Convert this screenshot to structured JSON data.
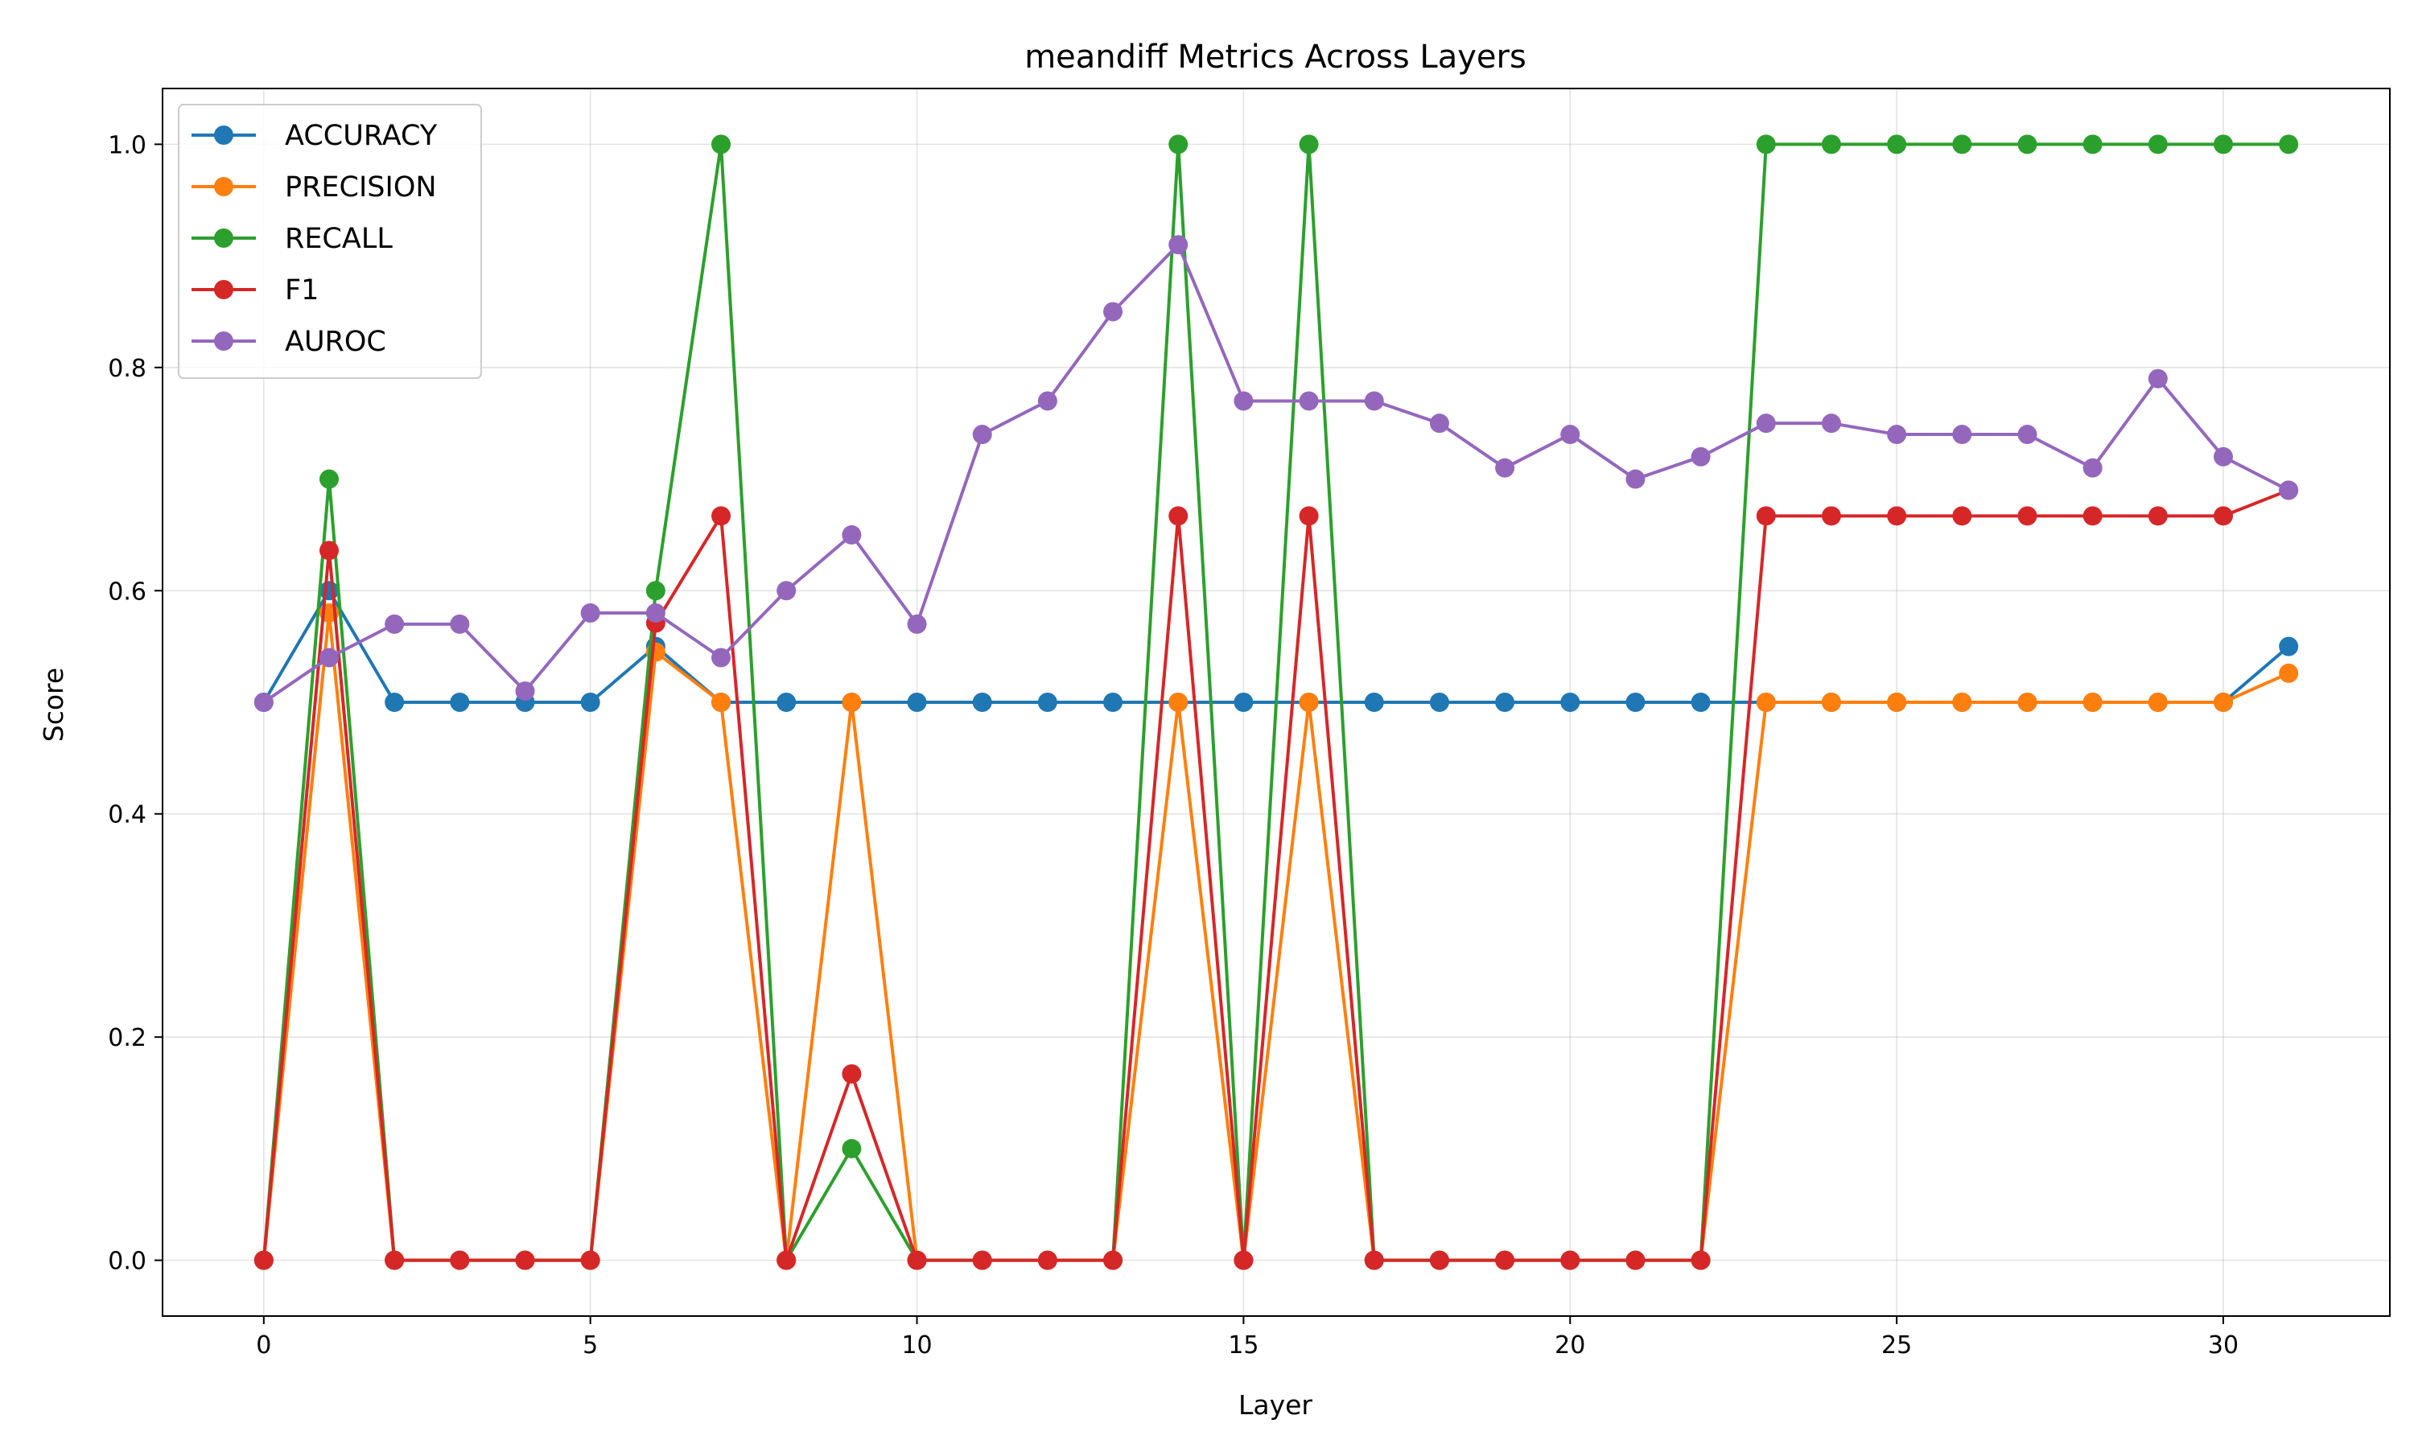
{
  "chart_data": {
    "type": "line",
    "title": "meandiff Metrics Across Layers",
    "xlabel": "Layer",
    "ylabel": "Score",
    "xlim": [
      -1.55,
      32.55
    ],
    "ylim": [
      -0.05,
      1.05
    ],
    "xticks": [
      0,
      5,
      10,
      15,
      20,
      25,
      30
    ],
    "yticks": [
      0.0,
      0.2,
      0.4,
      0.6,
      0.8,
      1.0
    ],
    "ytick_labels": [
      "0.0",
      "0.2",
      "0.4",
      "0.6",
      "0.8",
      "1.0"
    ],
    "grid": true,
    "legend_position": "top-left",
    "x": [
      0,
      1,
      2,
      3,
      4,
      5,
      6,
      7,
      8,
      9,
      10,
      11,
      12,
      13,
      14,
      15,
      16,
      17,
      18,
      19,
      20,
      21,
      22,
      23,
      24,
      25,
      26,
      27,
      28,
      29,
      30,
      31
    ],
    "series": [
      {
        "name": "ACCURACY",
        "color": "#1f77b4",
        "values": [
          0.5,
          0.6,
          0.5,
          0.5,
          0.5,
          0.5,
          0.55,
          0.5,
          0.5,
          0.5,
          0.5,
          0.5,
          0.5,
          0.5,
          0.5,
          0.5,
          0.5,
          0.5,
          0.5,
          0.5,
          0.5,
          0.5,
          0.5,
          0.5,
          0.5,
          0.5,
          0.5,
          0.5,
          0.5,
          0.5,
          0.5,
          0.55
        ]
      },
      {
        "name": "PRECISION",
        "color": "#ff7f0e",
        "values": [
          0.0,
          0.58,
          0.0,
          0.0,
          0.0,
          0.0,
          0.545,
          0.5,
          0.0,
          0.5,
          0.0,
          0.0,
          0.0,
          0.0,
          0.5,
          0.0,
          0.5,
          0.0,
          0.0,
          0.0,
          0.0,
          0.0,
          0.0,
          0.5,
          0.5,
          0.5,
          0.5,
          0.5,
          0.5,
          0.5,
          0.5,
          0.526
        ]
      },
      {
        "name": "RECALL",
        "color": "#2ca02c",
        "values": [
          0.0,
          0.7,
          0.0,
          0.0,
          0.0,
          0.0,
          0.6,
          1.0,
          0.0,
          0.1,
          0.0,
          0.0,
          0.0,
          0.0,
          1.0,
          0.0,
          1.0,
          0.0,
          0.0,
          0.0,
          0.0,
          0.0,
          0.0,
          1.0,
          1.0,
          1.0,
          1.0,
          1.0,
          1.0,
          1.0,
          1.0,
          1.0
        ]
      },
      {
        "name": "F1",
        "color": "#d62728",
        "values": [
          0.0,
          0.636,
          0.0,
          0.0,
          0.0,
          0.0,
          0.571,
          0.667,
          0.0,
          0.167,
          0.0,
          0.0,
          0.0,
          0.0,
          0.667,
          0.0,
          0.667,
          0.0,
          0.0,
          0.0,
          0.0,
          0.0,
          0.0,
          0.667,
          0.667,
          0.667,
          0.667,
          0.667,
          0.667,
          0.667,
          0.667,
          0.69
        ]
      },
      {
        "name": "AUROC",
        "color": "#9467bd",
        "values": [
          0.5,
          0.54,
          0.57,
          0.57,
          0.51,
          0.58,
          0.58,
          0.54,
          0.6,
          0.65,
          0.57,
          0.74,
          0.77,
          0.85,
          0.91,
          0.77,
          0.77,
          0.77,
          0.75,
          0.71,
          0.74,
          0.7,
          0.72,
          0.75,
          0.75,
          0.74,
          0.74,
          0.74,
          0.71,
          0.79,
          0.72,
          0.69
        ]
      }
    ]
  }
}
